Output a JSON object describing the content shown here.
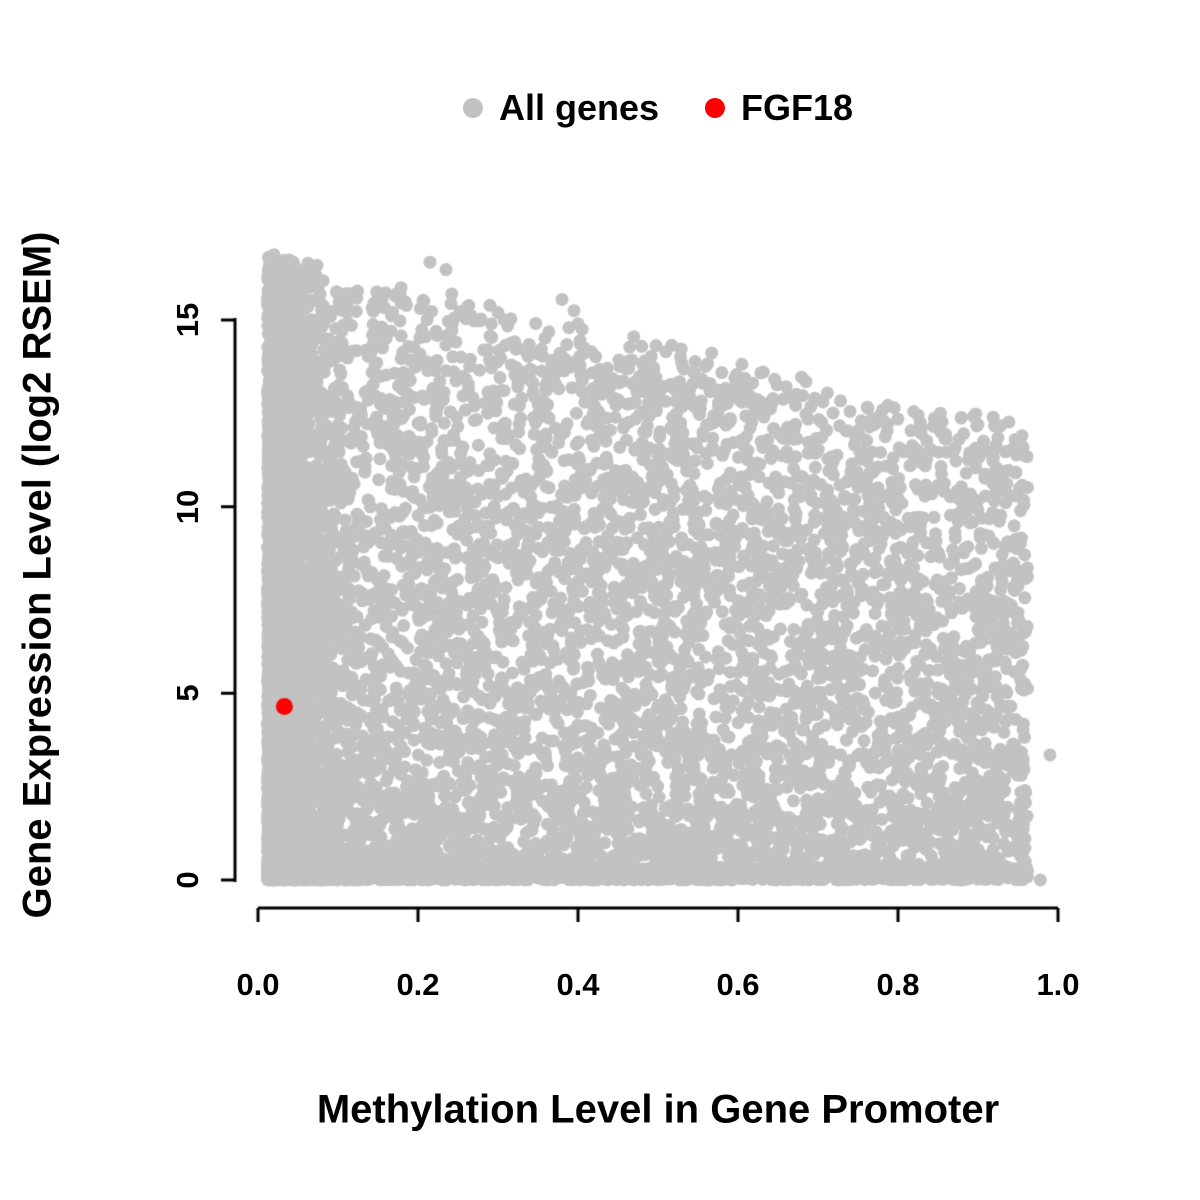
{
  "figure": {
    "background": "#ffffff",
    "text_color": "#000000"
  },
  "legend": {
    "position": "top",
    "items": [
      {
        "label": "All genes",
        "color": "#c2c2c2"
      },
      {
        "label": "FGF18",
        "color": "#ff0000"
      }
    ]
  },
  "chart_data": {
    "type": "scatter",
    "title": "",
    "xlabel": "Methylation Level in Gene Promoter",
    "ylabel": "Gene Expression Level (log2 RSEM)",
    "xlim": [
      0.0,
      1.0
    ],
    "ylim": [
      0,
      17
    ],
    "grid": false,
    "legend_position": "top",
    "x_ticks": [
      {
        "value": 0.0,
        "label": "0.0"
      },
      {
        "value": 0.2,
        "label": "0.2"
      },
      {
        "value": 0.4,
        "label": "0.4"
      },
      {
        "value": 0.6,
        "label": "0.6"
      },
      {
        "value": 0.8,
        "label": "0.8"
      },
      {
        "value": 1.0,
        "label": "1.0"
      }
    ],
    "y_ticks": [
      {
        "value": 0,
        "label": "0"
      },
      {
        "value": 5,
        "label": "5"
      },
      {
        "value": 10,
        "label": "10"
      },
      {
        "value": 15,
        "label": "15"
      }
    ],
    "series": [
      {
        "name": "All genes",
        "color": "#c2c2c2",
        "marker": "filled-circle",
        "point_radius_px": 6.5,
        "approximation": {
          "n": 11000,
          "seed": 20240501,
          "x_min": 0.012,
          "x_max": 0.962,
          "x_power": 1.25,
          "left_column_fraction": 0.28,
          "left_column_width": 0.1,
          "envelope_intercept": 16.55,
          "envelope_slope": -4.8,
          "envelope_noise": 0.45,
          "y_power": 1.35,
          "baseline_fraction": 0.2,
          "baseline_height": 0.35
        },
        "extra_points": [
          {
            "x": 0.02,
            "y": 16.75
          },
          {
            "x": 0.035,
            "y": 16.55
          },
          {
            "x": 0.055,
            "y": 16.1
          },
          {
            "x": 0.075,
            "y": 15.9
          },
          {
            "x": 0.145,
            "y": 15.45
          },
          {
            "x": 0.215,
            "y": 16.55
          },
          {
            "x": 0.235,
            "y": 16.35
          },
          {
            "x": 0.3,
            "y": 15.2
          },
          {
            "x": 0.38,
            "y": 15.55
          },
          {
            "x": 0.395,
            "y": 15.25
          },
          {
            "x": 0.51,
            "y": 14.15
          },
          {
            "x": 0.545,
            "y": 13.6
          },
          {
            "x": 0.565,
            "y": 13.3
          },
          {
            "x": 0.605,
            "y": 12.8
          },
          {
            "x": 0.685,
            "y": 13.35
          },
          {
            "x": 0.74,
            "y": 12.55
          },
          {
            "x": 0.77,
            "y": 12.2
          },
          {
            "x": 0.825,
            "y": 12.45
          },
          {
            "x": 0.9,
            "y": 12.2
          },
          {
            "x": 0.925,
            "y": 11.85
          },
          {
            "x": 0.955,
            "y": 11.9
          },
          {
            "x": 0.99,
            "y": 3.35
          }
        ]
      },
      {
        "name": "FGF18",
        "color": "#ff0000",
        "marker": "filled-circle",
        "point_radius_px": 8.5,
        "points": [
          {
            "x": 0.033,
            "y": 4.65
          }
        ]
      }
    ]
  }
}
